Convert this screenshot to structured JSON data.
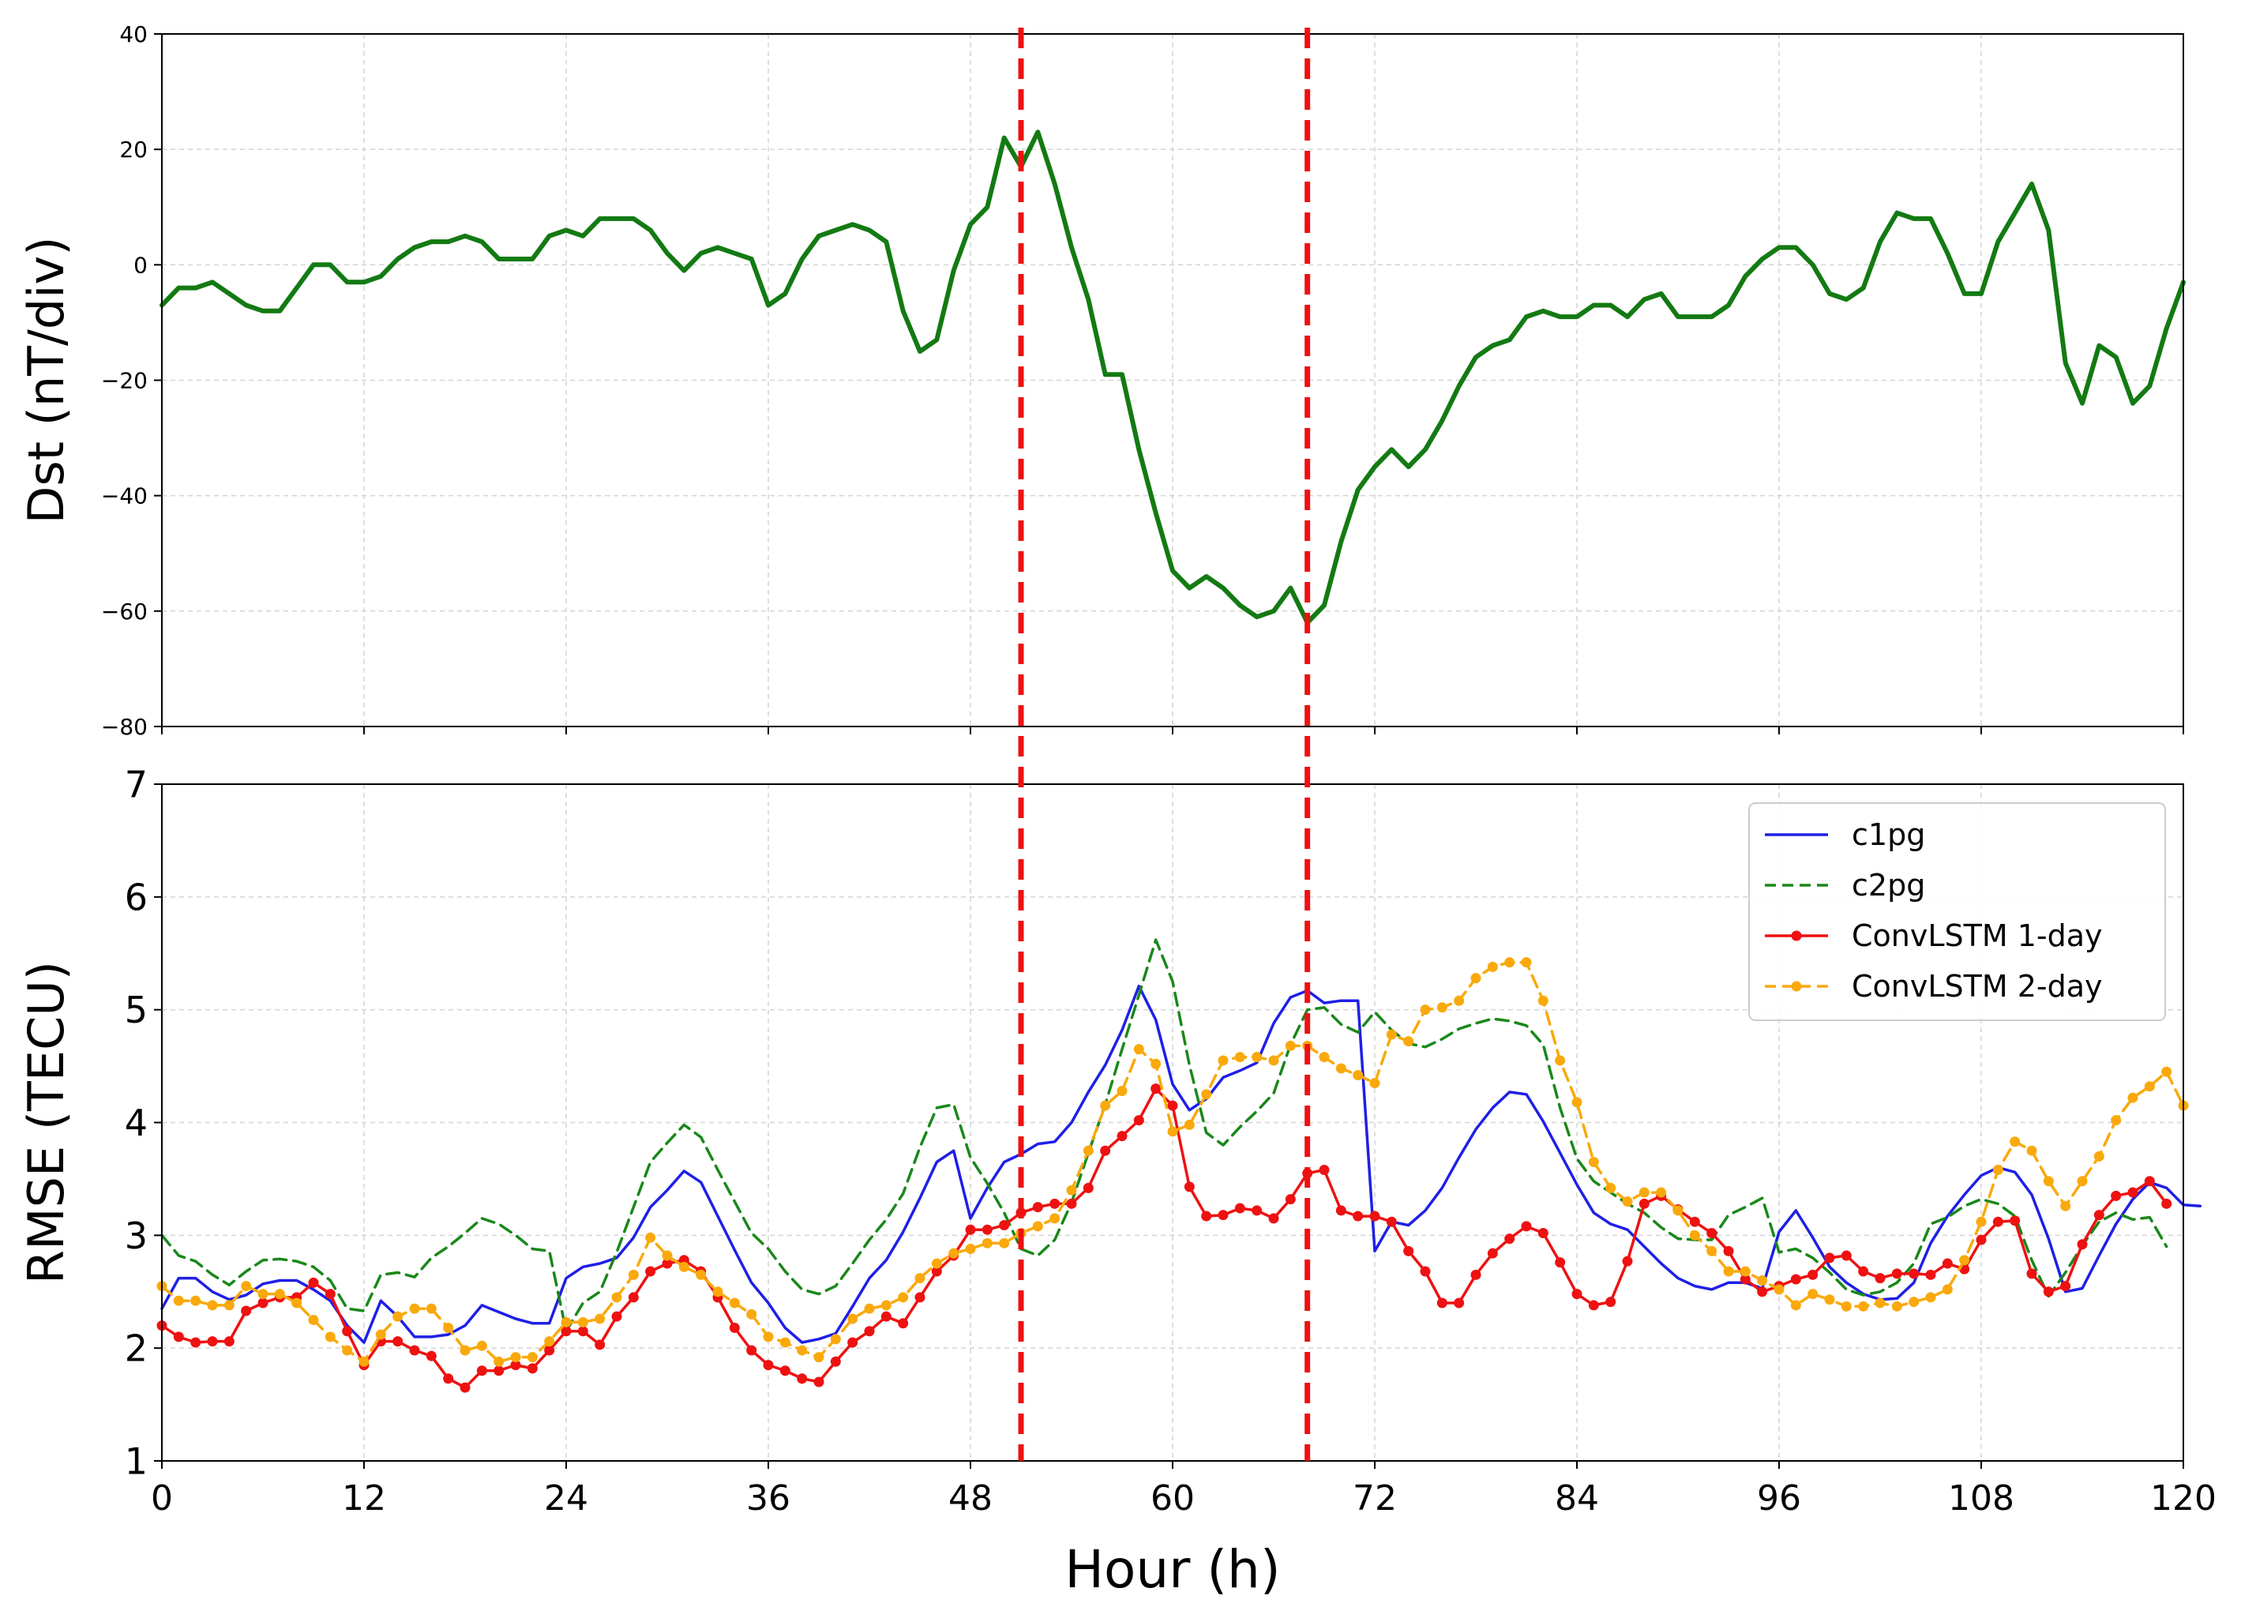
{
  "chart_data": [
    {
      "type": "line",
      "ylabel": "Dst (nT/div)",
      "xlabel": "",
      "xlim": [
        0,
        120
      ],
      "ylim": [
        -80,
        40
      ],
      "xticks": [
        0,
        12,
        24,
        36,
        48,
        60,
        72,
        84,
        96,
        108,
        120
      ],
      "yticks": [
        -80,
        -60,
        -40,
        -20,
        0,
        20,
        40
      ],
      "ytick_labels": [
        "−80",
        "−60",
        "−40",
        "−20",
        "0",
        "20",
        "40"
      ],
      "grid": true,
      "series": [
        {
          "name": "Dst",
          "color": "#137a13",
          "style": "solid",
          "values": [
            -7,
            -4,
            -4,
            -3,
            -5,
            -7,
            -8,
            -8,
            -4,
            0,
            0,
            -3,
            -3,
            -2,
            1,
            3,
            4,
            4,
            5,
            4,
            1,
            1,
            1,
            5,
            6,
            5,
            8,
            8,
            8,
            6,
            2,
            -1,
            2,
            3,
            2,
            1,
            -7,
            -5,
            1,
            5,
            6,
            7,
            6,
            4,
            -8,
            -15,
            -13,
            -1,
            7,
            10,
            22,
            17,
            23,
            14,
            3,
            -6,
            -19,
            -19,
            -32,
            -43,
            -53,
            -56,
            -54,
            -56,
            -59,
            -61,
            -60,
            -56,
            -62,
            -59,
            -48,
            -39,
            -35,
            -32,
            -35,
            -32,
            -27,
            -21,
            -16,
            -14,
            -13,
            -9,
            -8,
            -9,
            -9,
            -7,
            -7,
            -9,
            -6,
            -5,
            -9,
            -9,
            -9,
            -7,
            -2,
            1,
            3,
            3,
            0,
            -5,
            -6,
            -4,
            4,
            9,
            8,
            8,
            2,
            -5,
            -5,
            4,
            9,
            14,
            6,
            -17,
            -24,
            -14,
            -16,
            -24,
            -21,
            -11,
            -3
          ]
        }
      ]
    },
    {
      "type": "line",
      "ylabel": "RMSE (TECU)",
      "xlabel": "Hour (h)",
      "xlim": [
        0,
        120
      ],
      "ylim": [
        1,
        7
      ],
      "xticks": [
        0,
        12,
        24,
        36,
        48,
        60,
        72,
        84,
        96,
        108,
        120
      ],
      "yticks": [
        1,
        2,
        3,
        4,
        5,
        6,
        7
      ],
      "grid": true,
      "legend_position": "top-right",
      "series": [
        {
          "name": "c1pg",
          "color": "#1f1fe6",
          "style": "solid",
          "values": [
            2.35,
            2.62,
            2.62,
            2.5,
            2.43,
            2.47,
            2.57,
            2.6,
            2.6,
            2.52,
            2.42,
            2.2,
            2.05,
            2.42,
            2.28,
            2.1,
            2.1,
            2.12,
            2.2,
            2.38,
            2.32,
            2.26,
            2.22,
            2.22,
            2.62,
            2.72,
            2.75,
            2.8,
            2.98,
            3.25,
            3.4,
            3.57,
            3.47,
            3.17,
            2.87,
            2.58,
            2.4,
            2.18,
            2.05,
            2.08,
            2.13,
            2.37,
            2.62,
            2.78,
            3.03,
            3.33,
            3.65,
            3.75,
            3.15,
            3.42,
            3.65,
            3.72,
            3.81,
            3.83,
            4.0,
            4.27,
            4.51,
            4.82,
            5.21,
            4.91,
            4.34,
            4.11,
            4.21,
            4.4,
            4.46,
            4.53,
            4.88,
            5.11,
            5.17,
            5.06,
            5.08,
            5.08,
            2.86,
            3.12,
            3.09,
            3.22,
            3.42,
            3.69,
            3.94,
            4.13,
            4.27,
            4.25,
            4.01,
            3.73,
            3.45,
            3.2,
            3.1,
            3.05,
            2.9,
            2.75,
            2.62,
            2.55,
            2.52,
            2.58,
            2.58,
            2.53,
            3.03,
            3.22,
            2.98,
            2.72,
            2.58,
            2.48,
            2.43,
            2.44,
            2.58,
            2.93,
            3.17,
            3.36,
            3.53,
            3.6,
            3.56,
            3.36,
            2.97,
            2.5,
            2.53,
            2.82,
            3.1,
            3.32,
            3.47,
            3.42,
            3.27,
            3.26
          ]
        },
        {
          "name": "c2pg",
          "color": "#1a881a",
          "style": "dashed",
          "values": [
            3.0,
            2.82,
            2.77,
            2.65,
            2.56,
            2.68,
            2.78,
            2.79,
            2.77,
            2.72,
            2.6,
            2.35,
            2.33,
            2.65,
            2.67,
            2.63,
            2.8,
            2.9,
            3.02,
            3.15,
            3.1,
            3.0,
            2.88,
            2.86,
            2.15,
            2.4,
            2.5,
            2.85,
            3.25,
            3.65,
            3.82,
            3.98,
            3.87,
            3.58,
            3.3,
            3.02,
            2.88,
            2.68,
            2.52,
            2.48,
            2.55,
            2.75,
            2.96,
            3.14,
            3.37,
            3.78,
            4.13,
            4.16,
            3.69,
            3.46,
            3.2,
            2.88,
            2.82,
            2.96,
            3.29,
            3.73,
            4.16,
            4.65,
            5.13,
            5.62,
            5.25,
            4.51,
            3.91,
            3.8,
            3.96,
            4.1,
            4.26,
            4.69,
            5.0,
            5.02,
            4.87,
            4.8,
            4.98,
            4.82,
            4.7,
            4.67,
            4.74,
            4.83,
            4.88,
            4.92,
            4.9,
            4.86,
            4.69,
            4.13,
            3.68,
            3.48,
            3.38,
            3.28,
            3.2,
            3.07,
            2.97,
            2.96,
            2.96,
            3.18,
            3.25,
            3.33,
            2.85,
            2.88,
            2.8,
            2.67,
            2.52,
            2.47,
            2.5,
            2.58,
            2.75,
            3.1,
            3.16,
            3.26,
            3.32,
            3.28,
            3.17,
            2.78,
            2.46,
            2.67,
            2.91,
            3.12,
            3.2,
            3.14,
            3.16,
            2.9
          ]
        },
        {
          "name": "ConvLSTM 1-day",
          "color": "#ee1111",
          "style": "solid-marker",
          "values": [
            2.2,
            2.1,
            2.05,
            2.06,
            2.06,
            2.33,
            2.4,
            2.45,
            2.45,
            2.58,
            2.48,
            2.15,
            1.85,
            2.06,
            2.06,
            1.98,
            1.93,
            1.73,
            1.65,
            1.8,
            1.8,
            1.85,
            1.82,
            1.98,
            2.15,
            2.15,
            2.03,
            2.28,
            2.45,
            2.68,
            2.75,
            2.78,
            2.68,
            2.45,
            2.18,
            1.98,
            1.85,
            1.8,
            1.73,
            1.7,
            1.88,
            2.05,
            2.15,
            2.28,
            2.22,
            2.45,
            2.68,
            2.82,
            3.05,
            3.05,
            3.09,
            3.2,
            3.25,
            3.28,
            3.28,
            3.42,
            3.75,
            3.88,
            4.02,
            4.3,
            4.15,
            3.43,
            3.17,
            3.18,
            3.24,
            3.22,
            3.15,
            3.32,
            3.55,
            3.58,
            3.22,
            3.17,
            3.17,
            3.12,
            2.86,
            2.68,
            2.4,
            2.4,
            2.65,
            2.84,
            2.97,
            3.08,
            3.02,
            2.76,
            2.48,
            2.38,
            2.41,
            2.77,
            3.28,
            3.35,
            3.23,
            3.12,
            3.02,
            2.86,
            2.61,
            2.5,
            2.55,
            2.61,
            2.65,
            2.8,
            2.82,
            2.68,
            2.62,
            2.66,
            2.66,
            2.65,
            2.75,
            2.7,
            2.96,
            3.12,
            3.13,
            2.66,
            2.5,
            2.55,
            2.92,
            3.18,
            3.35,
            3.38,
            3.48,
            3.28
          ]
        },
        {
          "name": "ConvLSTM 2-day",
          "color": "#f9a90c",
          "style": "dashed-marker",
          "values": [
            2.55,
            2.42,
            2.42,
            2.38,
            2.38,
            2.55,
            2.48,
            2.48,
            2.4,
            2.25,
            2.1,
            1.98,
            1.88,
            2.12,
            2.28,
            2.35,
            2.35,
            2.18,
            1.98,
            2.02,
            1.88,
            1.92,
            1.92,
            2.06,
            2.23,
            2.23,
            2.26,
            2.45,
            2.65,
            2.98,
            2.82,
            2.72,
            2.65,
            2.5,
            2.4,
            2.3,
            2.1,
            2.05,
            1.98,
            1.92,
            2.08,
            2.26,
            2.35,
            2.38,
            2.45,
            2.62,
            2.75,
            2.84,
            2.88,
            2.93,
            2.93,
            3.02,
            3.08,
            3.15,
            3.4,
            3.75,
            4.15,
            4.28,
            4.65,
            4.52,
            3.92,
            3.98,
            4.25,
            4.55,
            4.58,
            4.58,
            4.55,
            4.68,
            4.68,
            4.58,
            4.48,
            4.42,
            4.35,
            4.78,
            4.72,
            5.0,
            5.02,
            5.08,
            5.28,
            5.38,
            5.42,
            5.42,
            5.08,
            4.55,
            4.18,
            3.65,
            3.42,
            3.3,
            3.38,
            3.38,
            3.22,
            3.0,
            2.86,
            2.68,
            2.68,
            2.6,
            2.52,
            2.38,
            2.48,
            2.43,
            2.37,
            2.37,
            2.4,
            2.37,
            2.41,
            2.45,
            2.52,
            2.78,
            3.12,
            3.58,
            3.83,
            3.75,
            3.48,
            3.26,
            3.48,
            3.7,
            4.02,
            4.22,
            4.32,
            4.45,
            4.15
          ]
        }
      ]
    }
  ],
  "events": {
    "vlines_hours": [
      51,
      68
    ],
    "vline_color": "#ee1111"
  }
}
